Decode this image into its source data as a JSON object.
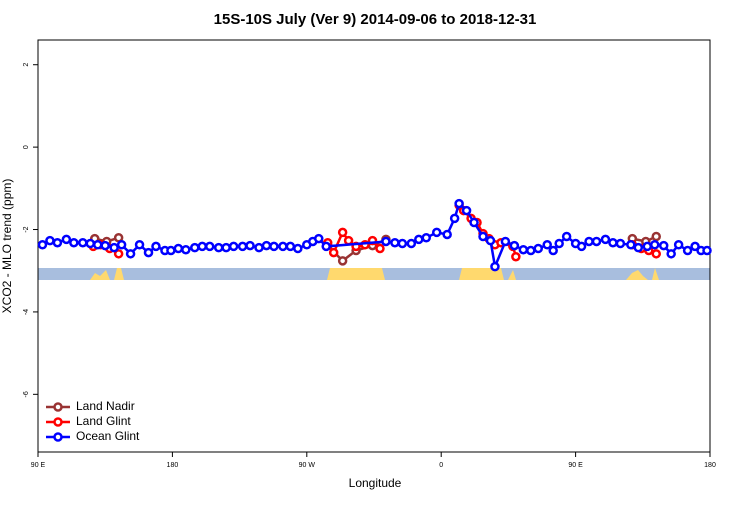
{
  "chart_data": {
    "type": "line",
    "title": "15S-10S July (Ver 9)   2014-09-06 to 2018-12-31",
    "x_label": "Longitude",
    "y_label": "XCO2 - MLO trend (ppm)",
    "xlim": [
      90,
      540
    ],
    "xticks": [
      {
        "value": 90,
        "label": "90 E"
      },
      180,
      {
        "value": 270,
        "label": "90 W"
      },
      {
        "value": 360,
        "label": "0"
      },
      {
        "value": 450,
        "label": "90 E"
      },
      {
        "value": 540,
        "label": "180"
      }
    ],
    "ylim": [
      -7.4,
      2.6
    ],
    "yticks": [
      2,
      0,
      -2,
      -4,
      -6
    ],
    "legend": "bottom-left",
    "series": [
      {
        "name": "Land Nadir",
        "color": "#993333",
        "x": [
          128,
          136,
          144,
          null,
          284,
          294,
          303,
          314,
          323,
          null,
          488,
          497,
          504
        ],
        "values": [
          -2.22,
          -2.29,
          -2.2,
          null,
          -2.39,
          -2.76,
          -2.51,
          -2.39,
          -2.24,
          null,
          -2.22,
          -2.29,
          -2.17
        ]
      },
      {
        "name": "Land Glint",
        "color": "#ff0000",
        "x": [
          127,
          132,
          138,
          144,
          null,
          284,
          288,
          294,
          298,
          303,
          309,
          314,
          319,
          null,
          372,
          375,
          380,
          384,
          388,
          392,
          396,
          400,
          408,
          410,
          null,
          488,
          494,
          499,
          504
        ],
        "values": [
          -2.41,
          -2.37,
          -2.46,
          -2.59,
          null,
          -2.32,
          -2.56,
          -2.07,
          -2.27,
          -2.41,
          -2.37,
          -2.27,
          -2.46,
          null,
          -1.41,
          -1.54,
          -1.73,
          -1.83,
          -2.1,
          -2.22,
          -2.37,
          -2.32,
          -2.41,
          -2.66,
          null,
          -2.37,
          -2.46,
          -2.51,
          -2.59
        ]
      },
      {
        "name": "Ocean Glint",
        "color": "#0000ff",
        "x": [
          93,
          98,
          103,
          109,
          114,
          120,
          125,
          130,
          135,
          141,
          146,
          152,
          158,
          164,
          169,
          175,
          179,
          184,
          189,
          195,
          200,
          205,
          211,
          216,
          221,
          227,
          232,
          238,
          243,
          248,
          254,
          259,
          264,
          270,
          274,
          278,
          283,
          323,
          329,
          334,
          340,
          345,
          350,
          357,
          364,
          369,
          372,
          377,
          382,
          388,
          393,
          396,
          403,
          409,
          415,
          420,
          425,
          431,
          435,
          439,
          444,
          450,
          454,
          459,
          464,
          470,
          475,
          480,
          487,
          492,
          498,
          503,
          509,
          514,
          519,
          525,
          530,
          534,
          538
        ],
        "values": [
          -2.37,
          -2.27,
          -2.32,
          -2.24,
          -2.32,
          -2.32,
          -2.34,
          -2.37,
          -2.39,
          -2.44,
          -2.37,
          -2.59,
          -2.37,
          -2.56,
          -2.41,
          -2.51,
          -2.51,
          -2.46,
          -2.49,
          -2.44,
          -2.41,
          -2.41,
          -2.44,
          -2.44,
          -2.41,
          -2.41,
          -2.39,
          -2.44,
          -2.39,
          -2.41,
          -2.41,
          -2.41,
          -2.46,
          -2.37,
          -2.29,
          -2.22,
          -2.41,
          -2.29,
          -2.32,
          -2.34,
          -2.34,
          -2.24,
          -2.2,
          -2.07,
          -2.12,
          -1.73,
          -1.37,
          -1.54,
          -1.83,
          -2.17,
          -2.27,
          -2.9,
          -2.29,
          -2.39,
          -2.49,
          -2.51,
          -2.46,
          -2.37,
          -2.51,
          -2.34,
          -2.17,
          -2.34,
          -2.41,
          -2.29,
          -2.29,
          -2.24,
          -2.32,
          -2.34,
          -2.37,
          -2.44,
          -2.41,
          -2.37,
          -2.39,
          -2.59,
          -2.37,
          -2.51,
          -2.41,
          -2.51,
          -2.51
        ]
      }
    ]
  }
}
